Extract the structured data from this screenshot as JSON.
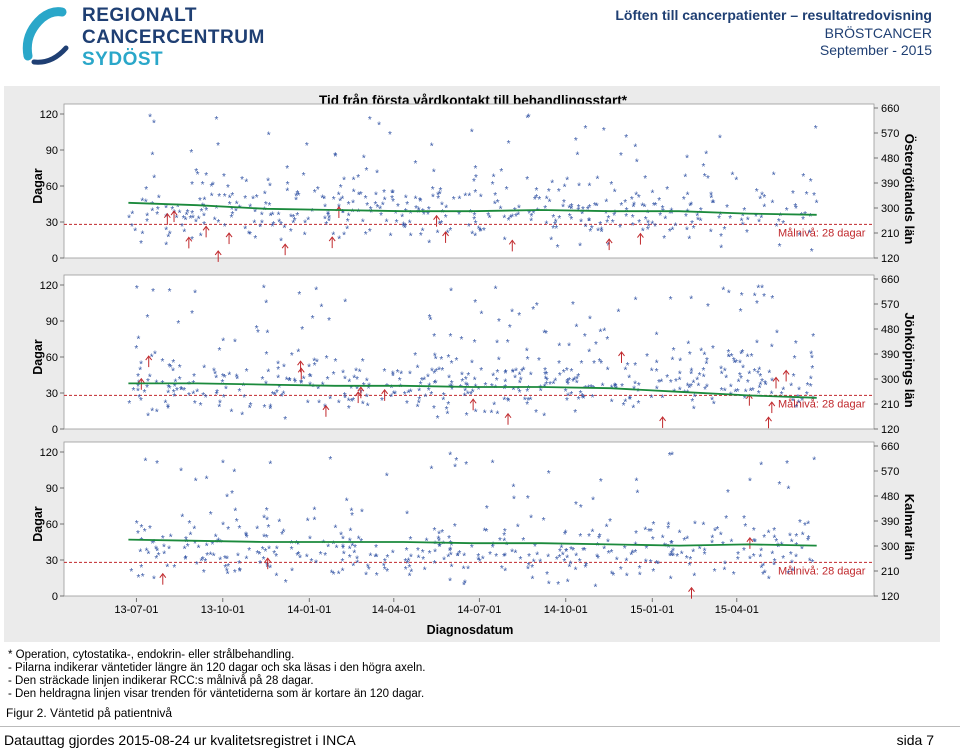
{
  "logo": {
    "line1": "REGIONALT",
    "line2": "CANCERCENTRUM",
    "line3": "SYDÖST"
  },
  "header": {
    "title": "Löften till cancerpatienter – resultatredovisning",
    "subtitle": "BRÖSTCANCER",
    "date": "September - 2015"
  },
  "chart_data": {
    "type": "scatter",
    "title": "Tid från första vårdkontakt till behandlingsstart*",
    "xlabel": "Diagnosdatum",
    "x_ticks": [
      "13-07-01",
      "13-10-01",
      "14-01-01",
      "14-04-01",
      "14-07-01",
      "14-10-01",
      "15-01-01",
      "15-04-01"
    ],
    "xlim": [
      "2013-04-15",
      "2015-08-25"
    ],
    "target_label": "Målnivå: 28 dagar",
    "target_value": 28,
    "left_ylabel": "Dagar",
    "left_yticks": [
      0,
      30,
      60,
      90,
      120
    ],
    "ylim": [
      0,
      125
    ],
    "right_yticks": [
      120,
      210,
      300,
      390,
      480,
      570,
      660
    ],
    "right_ylim": [
      120,
      660
    ],
    "panels": [
      {
        "name": "Östergötlands län",
        "trend": [
          [
            0,
            46
          ],
          [
            0.1,
            44
          ],
          [
            0.2,
            41
          ],
          [
            0.3,
            40
          ],
          [
            0.4,
            39
          ],
          [
            0.5,
            39
          ],
          [
            0.6,
            40
          ],
          [
            0.7,
            39
          ],
          [
            0.8,
            39
          ],
          [
            0.9,
            37
          ],
          [
            1.0,
            36
          ]
        ],
        "n_points": 470,
        "n_arrows": 14
      },
      {
        "name": "Jönköpings län",
        "trend": [
          [
            0,
            38
          ],
          [
            0.1,
            38
          ],
          [
            0.2,
            37
          ],
          [
            0.3,
            36
          ],
          [
            0.4,
            36
          ],
          [
            0.5,
            35
          ],
          [
            0.6,
            35
          ],
          [
            0.7,
            34
          ],
          [
            0.8,
            31
          ],
          [
            0.9,
            28
          ],
          [
            1.0,
            26
          ]
        ],
        "n_points": 520,
        "n_arrows": 17
      },
      {
        "name": "Kalmar län",
        "trend": [
          [
            0,
            47
          ],
          [
            0.1,
            46
          ],
          [
            0.2,
            45
          ],
          [
            0.3,
            45
          ],
          [
            0.4,
            45
          ],
          [
            0.5,
            44
          ],
          [
            0.6,
            44
          ],
          [
            0.7,
            43
          ],
          [
            0.8,
            42
          ],
          [
            0.9,
            43
          ],
          [
            1.0,
            42
          ]
        ],
        "n_points": 440,
        "n_arrows": 4
      }
    ],
    "colors": {
      "points": "#3b5ba8",
      "trend": "#1b8a3c",
      "target": "#c0282c",
      "arrows": "#c0282c"
    }
  },
  "notes": [
    "* Operation, cytostatika-, endokrin- eller strålbehandling.",
    "- Pilarna indikerar väntetider längre än 120 dagar och ska läsas i den högra axeln.",
    "- Den sträckade linjen indikerar RCC:s målnivå på 28 dagar.",
    "- Den heldragna linjen visar trenden för väntetiderna som är kortare än 120 dagar."
  ],
  "figure_caption": "Figur 2. Väntetid på patientnivå",
  "footer": {
    "left": "Datauttag gjordes 2015-08-24 ur kvalitetsregistret i INCA",
    "right": "sida 7"
  }
}
